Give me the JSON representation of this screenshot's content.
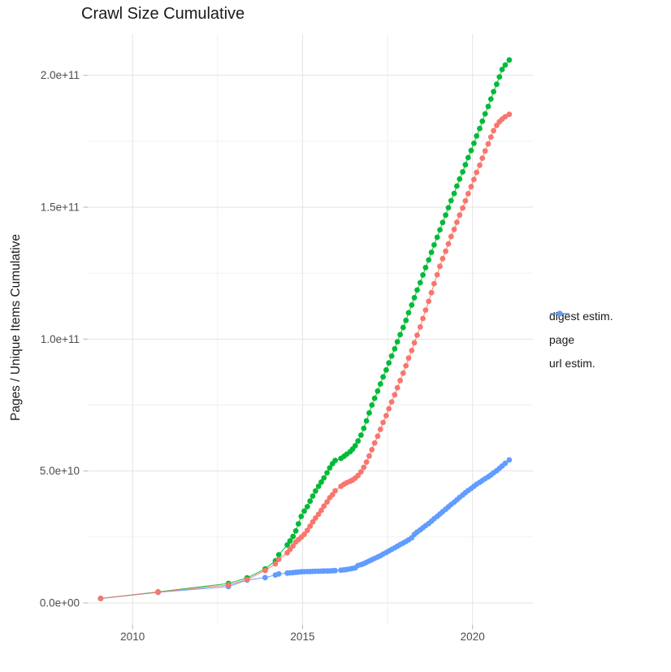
{
  "title": "Crawl Size Cumulative",
  "y_axis": {
    "title": "Pages / Unique Items Cumulative",
    "tick_labels": [
      "0.0e+00",
      "5.0e+10",
      "1.0e+11",
      "1.5e+11",
      "2.0e+11"
    ],
    "tick_values_e9": [
      0,
      50,
      100,
      150,
      200
    ],
    "minor_values_e9": [
      25,
      75,
      125,
      175
    ]
  },
  "x_axis": {
    "tick_labels": [
      "2010",
      "2015",
      "2020"
    ],
    "tick_values": [
      2010,
      2015,
      2020
    ],
    "minor_values": [
      2012.5,
      2017.5
    ]
  },
  "legend": {
    "items": [
      {
        "label": "digest estim.",
        "color": "#F8766D"
      },
      {
        "label": "page",
        "color": "#00BA38"
      },
      {
        "label": "url estim.",
        "color": "#619CFF"
      }
    ]
  },
  "colors": {
    "digest": "#F8766D",
    "page": "#00BA38",
    "url": "#619CFF",
    "grid_major": "#e3e3e3",
    "grid_minor": "#f0f0f0",
    "axis_tick": "#b5b5b5",
    "tick_text": "#4d4d4d"
  },
  "chart_data": {
    "type": "scatter",
    "title": "Crawl Size Cumulative",
    "xlabel": "",
    "ylabel": "Pages / Unique Items Cumulative",
    "x_unit": "year (decimal, one point per crawl)",
    "value_unit": "pages, in units of 1e9 (billions)",
    "xlim": [
      2008.7,
      2021.8
    ],
    "ylim_e9": [
      0,
      216
    ],
    "grid": true,
    "legend_position": "right",
    "x": [
      2009.06,
      2010.75,
      2012.82,
      2013.37,
      2013.9,
      2014.2,
      2014.3,
      2014.55,
      2014.63,
      2014.72,
      2014.8,
      2014.88,
      2014.96,
      2015.05,
      2015.14,
      2015.22,
      2015.3,
      2015.38,
      2015.47,
      2015.55,
      2015.63,
      2015.72,
      2015.8,
      2015.88,
      2015.96,
      2016.13,
      2016.22,
      2016.3,
      2016.4,
      2016.47,
      2016.55,
      2016.63,
      2016.72,
      2016.8,
      2016.88,
      2016.96,
      2017.04,
      2017.12,
      2017.21,
      2017.29,
      2017.37,
      2017.46,
      2017.54,
      2017.62,
      2017.71,
      2017.79,
      2017.87,
      2017.96,
      2018.04,
      2018.12,
      2018.21,
      2018.29,
      2018.37,
      2018.46,
      2018.54,
      2018.62,
      2018.71,
      2018.79,
      2018.87,
      2018.96,
      2019.04,
      2019.12,
      2019.21,
      2019.29,
      2019.37,
      2019.46,
      2019.54,
      2019.62,
      2019.71,
      2019.79,
      2019.87,
      2019.96,
      2020.04,
      2020.12,
      2020.21,
      2020.29,
      2020.37,
      2020.46,
      2020.54,
      2020.62,
      2020.71,
      2020.79,
      2020.87,
      2020.96,
      2021.08
    ],
    "series": [
      {
        "name": "digest estim.",
        "color": "#F8766D",
        "values_e9": [
          1.7,
          4.1,
          6.8,
          8.9,
          12.3,
          14.8,
          16.5,
          19.0,
          20.3,
          21.6,
          23.1,
          24.0,
          24.9,
          26.0,
          27.5,
          29.1,
          30.7,
          32.2,
          33.6,
          35.1,
          36.7,
          38.3,
          39.9,
          41.0,
          42.5,
          44.2,
          45.0,
          45.6,
          46.1,
          46.6,
          47.3,
          48.3,
          49.7,
          51.4,
          53.4,
          55.7,
          58.1,
          60.6,
          63.2,
          65.8,
          68.4,
          71.0,
          73.6,
          76.2,
          78.9,
          81.6,
          84.3,
          87.1,
          89.9,
          92.8,
          95.7,
          98.6,
          101.5,
          104.6,
          107.8,
          111.0,
          114.3,
          117.6,
          121.0,
          124.4,
          127.6,
          130.5,
          133.3,
          136.1,
          138.9,
          141.6,
          144.3,
          147.0,
          149.7,
          152.4,
          155.1,
          157.8,
          160.5,
          163.2,
          165.9,
          168.6,
          171.3,
          174.0,
          176.6,
          179.0,
          181.0,
          182.4,
          183.4,
          184.3,
          185.2
        ]
      },
      {
        "name": "page",
        "color": "#00BA38",
        "values_e9": [
          1.7,
          4.2,
          7.4,
          9.5,
          12.9,
          16.0,
          18.3,
          22.0,
          23.5,
          25.2,
          27.3,
          30.0,
          32.8,
          34.8,
          36.5,
          38.6,
          40.5,
          42.4,
          44.2,
          45.8,
          47.4,
          49.3,
          51.2,
          52.8,
          54.0,
          54.8,
          55.6,
          56.4,
          57.3,
          58.3,
          59.6,
          61.4,
          63.6,
          66.2,
          69.0,
          72.0,
          75.0,
          77.6,
          80.3,
          83.0,
          85.7,
          88.3,
          91.0,
          93.6,
          96.3,
          99.0,
          101.7,
          104.4,
          107.1,
          110.0,
          112.9,
          115.7,
          118.6,
          121.4,
          124.3,
          127.1,
          130.0,
          132.9,
          135.7,
          138.6,
          141.4,
          144.2,
          147.0,
          149.8,
          152.5,
          155.2,
          158.0,
          160.7,
          163.4,
          166.1,
          168.8,
          171.5,
          174.2,
          177.0,
          179.8,
          182.6,
          185.4,
          188.2,
          191.0,
          193.8,
          196.6,
          199.4,
          202.2,
          203.9,
          205.8
        ]
      },
      {
        "name": "url estim.",
        "color": "#619CFF",
        "values_e9": [
          1.7,
          4.0,
          6.2,
          8.7,
          9.6,
          10.6,
          11.0,
          11.3,
          11.4,
          11.5,
          11.6,
          11.7,
          11.8,
          11.85,
          11.9,
          11.9,
          11.95,
          12.0,
          12.0,
          12.05,
          12.1,
          12.1,
          12.15,
          12.2,
          12.25,
          12.4,
          12.55,
          12.7,
          12.9,
          13.1,
          13.3,
          14.2,
          14.5,
          14.9,
          15.4,
          15.9,
          16.4,
          16.9,
          17.4,
          17.9,
          18.5,
          19.1,
          19.7,
          20.3,
          20.9,
          21.5,
          22.1,
          22.7,
          23.3,
          23.9,
          24.7,
          26.0,
          26.9,
          27.7,
          28.5,
          29.3,
          30.1,
          31.0,
          31.9,
          32.8,
          33.7,
          34.6,
          35.5,
          36.4,
          37.3,
          38.2,
          39.1,
          40.0,
          40.9,
          41.8,
          42.6,
          43.4,
          44.2,
          45.0,
          45.7,
          46.4,
          47.1,
          47.8,
          48.5,
          49.3,
          50.1,
          51.0,
          51.9,
          52.9,
          54.2
        ]
      }
    ]
  }
}
